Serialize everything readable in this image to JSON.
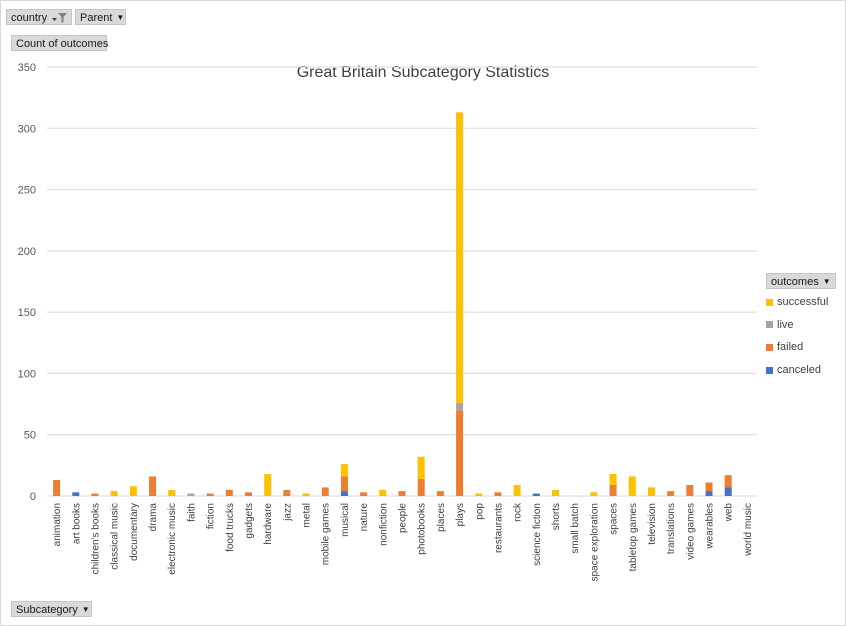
{
  "filters": {
    "country_label": "country",
    "parent_label": "Parent",
    "value_field_label": "Count of outcomes",
    "axis_field_label": "Subcategory"
  },
  "legend": {
    "title": "outcomes",
    "items": [
      "successful",
      "live",
      "failed",
      "canceled"
    ]
  },
  "colors": {
    "successful": "#ffc000",
    "live": "#a5a5a5",
    "failed": "#ed7d31",
    "canceled": "#4472c4",
    "grid": "#d9d9d9",
    "text": "#595959"
  },
  "chart_data": {
    "type": "bar",
    "stacked": true,
    "title": "Great Britain Subcategory Statistics",
    "xlabel": "",
    "ylabel": "",
    "ylim": [
      0,
      350
    ],
    "yticks": [
      "0",
      "50",
      "100",
      "150",
      "200",
      "250",
      "300",
      "350"
    ],
    "grid": true,
    "legend_position": "right",
    "categories": [
      "animation",
      "art books",
      "children's books",
      "classical music",
      "documentary",
      "drama",
      "electronic music",
      "faith",
      "fiction",
      "food trucks",
      "gadgets",
      "hardware",
      "jazz",
      "metal",
      "mobile games",
      "musical",
      "nature",
      "nonfiction",
      "people",
      "photobooks",
      "places",
      "plays",
      "pop",
      "restaurants",
      "rock",
      "science fiction",
      "shorts",
      "small batch",
      "space exploration",
      "spaces",
      "tabletop games",
      "television",
      "translations",
      "video games",
      "wearables",
      "web",
      "world music"
    ],
    "series": [
      {
        "name": "canceled",
        "values": [
          0,
          3,
          0,
          0,
          0,
          0,
          0,
          0,
          0,
          0,
          0,
          0,
          0,
          0,
          0,
          4,
          0,
          0,
          0,
          0,
          0,
          0,
          0,
          0,
          0,
          2,
          0,
          0,
          0,
          0,
          0,
          0,
          0,
          0,
          4,
          7,
          0
        ]
      },
      {
        "name": "failed",
        "values": [
          13,
          0,
          2,
          0,
          0,
          16,
          0,
          0,
          2,
          5,
          3,
          0,
          5,
          0,
          7,
          12,
          3,
          0,
          4,
          14,
          4,
          70,
          0,
          3,
          0,
          0,
          0,
          0,
          0,
          9,
          0,
          0,
          4,
          9,
          7,
          10,
          0
        ]
      },
      {
        "name": "live",
        "values": [
          0,
          0,
          0,
          0,
          0,
          0,
          0,
          2,
          0,
          0,
          0,
          0,
          0,
          0,
          0,
          0,
          0,
          0,
          0,
          0,
          0,
          6,
          0,
          0,
          0,
          0,
          0,
          0,
          0,
          0,
          0,
          0,
          0,
          0,
          0,
          0,
          0
        ]
      },
      {
        "name": "successful",
        "values": [
          0,
          0,
          0,
          4,
          8,
          0,
          5,
          0,
          0,
          0,
          0,
          18,
          0,
          2,
          0,
          10,
          0,
          5,
          0,
          18,
          0,
          237,
          2,
          0,
          9,
          0,
          5,
          0,
          3,
          9,
          16,
          7,
          0,
          0,
          0,
          0,
          0
        ]
      }
    ]
  }
}
